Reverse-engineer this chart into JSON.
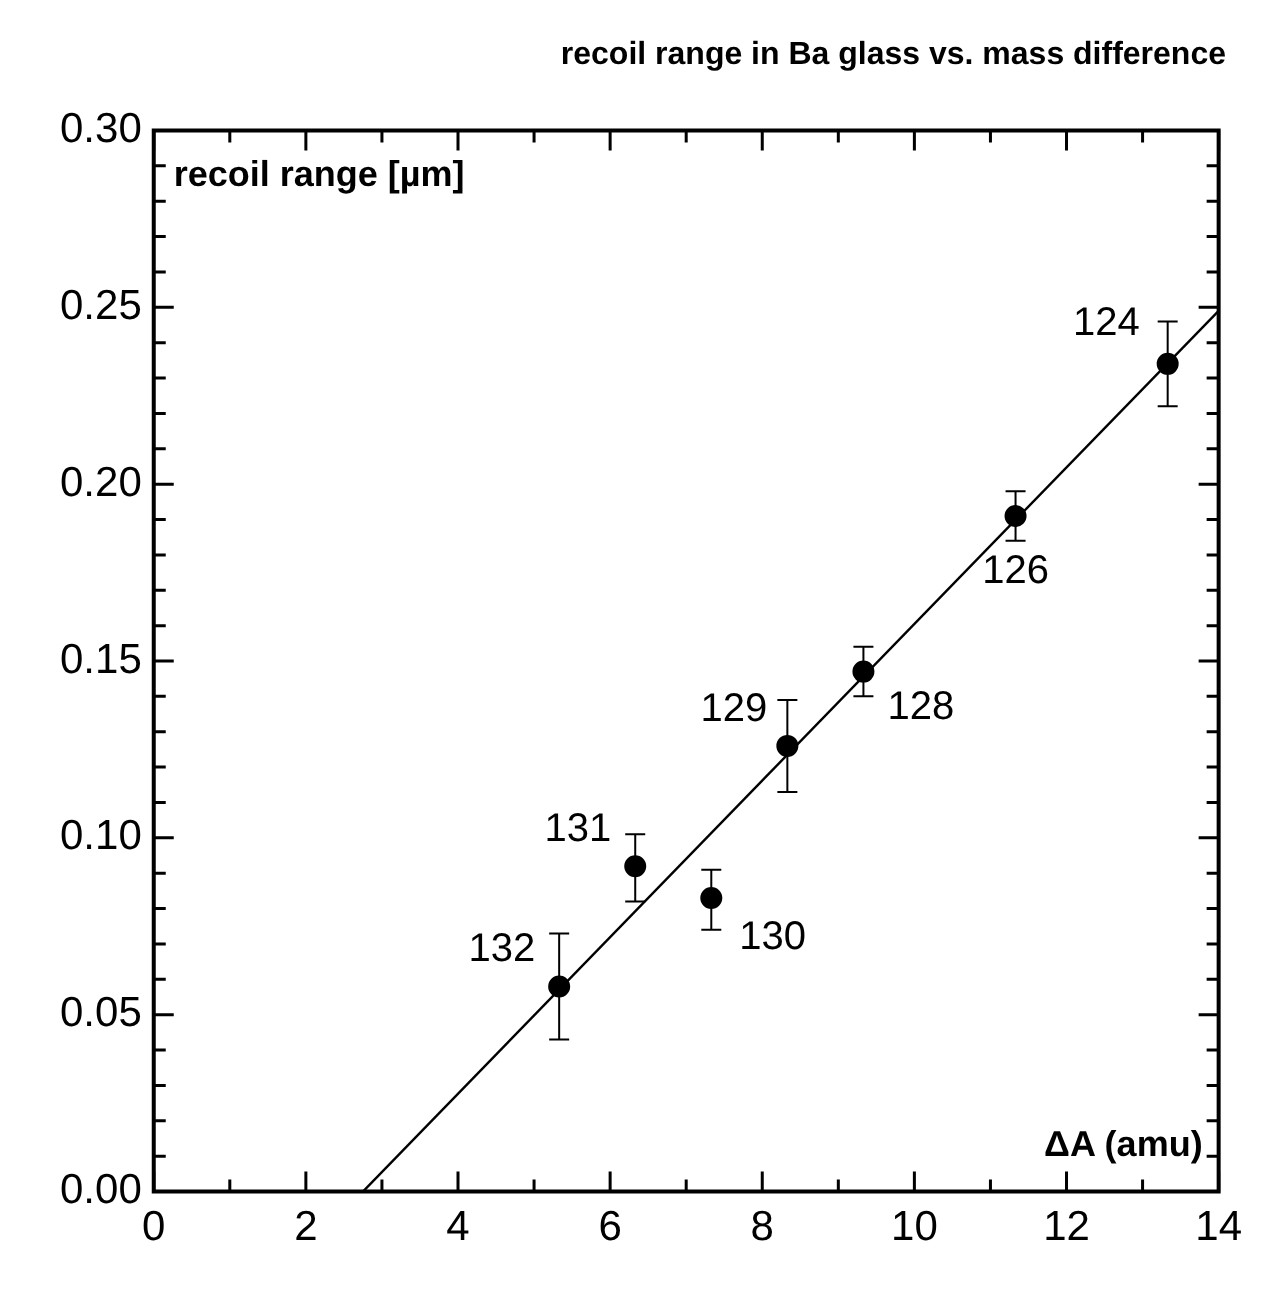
{
  "chart_data": {
    "type": "scatter",
    "title": "recoil range in Ba glass vs. mass difference",
    "xlabel": "ΔA (amu)",
    "ylabel": "recoil range [µm]",
    "series": [
      {
        "color": "#000000",
        "x": [
          5.33,
          6.33,
          7.33,
          8.33,
          9.33,
          11.33,
          13.33
        ],
        "values": [
          0.058,
          0.092,
          0.083,
          0.126,
          0.147,
          0.191,
          0.234
        ],
        "errors": [
          [
            0.043,
            0.073
          ],
          [
            0.082,
            0.101
          ],
          [
            0.074,
            0.091
          ],
          [
            0.113,
            0.139
          ],
          [
            0.14,
            0.154
          ],
          [
            0.184,
            0.198
          ],
          [
            0.222,
            0.246
          ]
        ]
      },
      {
        "type": "line",
        "marker": "none",
        "color": "#000000",
        "x": [
          2.75,
          14
        ],
        "values": [
          0,
          0.249
        ]
      }
    ],
    "annotations": [
      {
        "text": "132",
        "x": 5.33,
        "y": 0.058
      },
      {
        "text": "131",
        "x": 6.33,
        "y": 0.092
      },
      {
        "text": "130",
        "x": 7.33,
        "y": 0.083
      },
      {
        "text": "129",
        "x": 8.33,
        "y": 0.126
      },
      {
        "text": "128",
        "x": 9.33,
        "y": 0.147
      },
      {
        "text": "126",
        "x": 11.33,
        "y": 0.191
      },
      {
        "text": "124",
        "x": 13.33,
        "y": 0.234
      }
    ],
    "xlim": [
      0,
      14
    ],
    "xticks": [
      0,
      {
        "value": 1,
        "label": null
      },
      2,
      {
        "value": 3,
        "label": null
      },
      4,
      {
        "value": 5,
        "label": null
      },
      6,
      {
        "value": 7,
        "label": null
      },
      8,
      {
        "value": 9,
        "label": null
      },
      10,
      {
        "value": 11,
        "label": null
      },
      12,
      {
        "value": 13,
        "label": null
      },
      14
    ],
    "ylim": [
      0,
      0.3
    ],
    "yticks": [
      {
        "value": 0,
        "label": "0.00"
      },
      {
        "value": 0.01,
        "label": null
      },
      {
        "value": 0.02,
        "label": null
      },
      {
        "value": 0.03,
        "label": null
      },
      {
        "value": 0.04,
        "label": null
      },
      {
        "value": 0.05,
        "label": "0.05"
      },
      {
        "value": 0.06,
        "label": null
      },
      {
        "value": 0.07,
        "label": null
      },
      {
        "value": 0.08,
        "label": null
      },
      {
        "value": 0.09,
        "label": null
      },
      {
        "value": 0.1,
        "label": "0.10"
      },
      {
        "value": 0.11,
        "label": null
      },
      {
        "value": 0.12,
        "label": null
      },
      {
        "value": 0.13,
        "label": null
      },
      {
        "value": 0.14,
        "label": null
      },
      {
        "value": 0.15,
        "label": "0.15"
      },
      {
        "value": 0.16,
        "label": null
      },
      {
        "value": 0.17,
        "label": null
      },
      {
        "value": 0.18,
        "label": null
      },
      {
        "value": 0.19,
        "label": null
      },
      {
        "value": 0.2,
        "label": "0.20"
      },
      {
        "value": 0.21,
        "label": null
      },
      {
        "value": 0.22,
        "label": null
      },
      {
        "value": 0.23,
        "label": null
      },
      {
        "value": 0.24,
        "label": null
      },
      {
        "value": 0.25,
        "label": "0.25"
      },
      {
        "value": 0.26,
        "label": null
      },
      {
        "value": 0.27,
        "label": null
      },
      {
        "value": 0.28,
        "label": null
      },
      {
        "value": 0.29,
        "label": null
      },
      {
        "value": 0.3,
        "label": "0.30"
      }
    ],
    "grid": false,
    "legend": false,
    "marker": "circle",
    "line_style": "solid"
  }
}
